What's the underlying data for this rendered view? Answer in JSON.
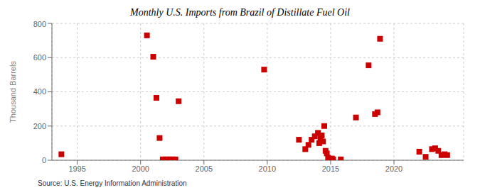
{
  "chart_data": {
    "type": "scatter",
    "title": "Monthly U.S. Imports from Brazil of Distillate Fuel Oil",
    "ylabel": "Thousand Barrels",
    "annotations": [
      "Source: U.S. Energy Information Administration"
    ],
    "x": [
      1993.75,
      2000.5,
      2001.0,
      2001.25,
      2001.5,
      2001.75,
      2002.0,
      2002.25,
      2002.5,
      2002.75,
      2003.0,
      2009.75,
      2012.5,
      2013.0,
      2013.25,
      2013.5,
      2013.75,
      2014.0,
      2014.1,
      2014.2,
      2014.3,
      2014.4,
      2014.5,
      2014.6,
      2014.7,
      2014.8,
      2014.9,
      2015.0,
      2015.1,
      2015.2,
      2015.8,
      2017.0,
      2018.0,
      2018.5,
      2018.7,
      2018.9,
      2022.0,
      2022.5,
      2023.0,
      2023.25,
      2023.5,
      2023.75,
      2024.0,
      2024.2
    ],
    "values": [
      35,
      730,
      605,
      365,
      130,
      5,
      5,
      5,
      5,
      5,
      345,
      530,
      120,
      65,
      90,
      120,
      140,
      160,
      100,
      130,
      145,
      110,
      200,
      55,
      40,
      15,
      5,
      5,
      10,
      5,
      5,
      250,
      555,
      270,
      280,
      710,
      50,
      20,
      65,
      70,
      55,
      30,
      35,
      30
    ],
    "color": "#cc0000",
    "marker": "square",
    "xlim": [
      1993.0,
      2025.5
    ],
    "ylim": [
      0,
      800
    ],
    "xticks": [
      1995,
      2000,
      2005,
      2010,
      2015,
      2020
    ],
    "yticks": [
      0,
      200,
      400,
      600,
      800
    ],
    "grid": true
  }
}
